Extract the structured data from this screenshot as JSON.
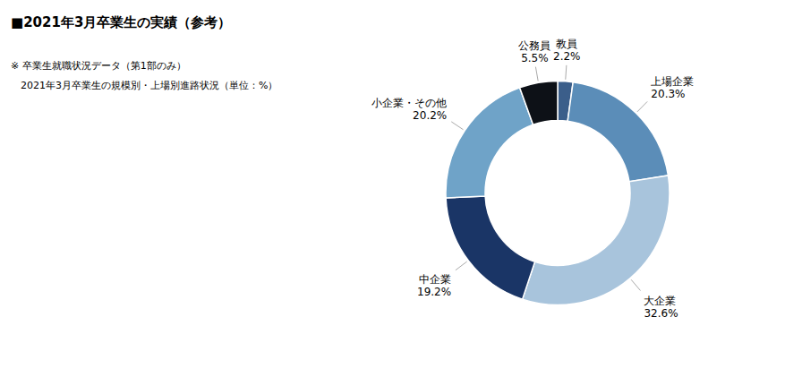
{
  "chart_data": {
    "type": "pie",
    "title": "■2021年3月卒業生の実績（参考）",
    "subtitle": [
      "※ 卒業生就職状況データ（第1部のみ）",
      "　2021年3月卒業生の規模別・上場別進路状況（単位：%）"
    ],
    "categories": [
      "教員",
      "上場企業",
      "大企業",
      "中企業",
      "小企業・その他",
      "公務員"
    ],
    "values": [
      2.2,
      20.3,
      32.6,
      19.2,
      20.2,
      5.5
    ],
    "value_labels": [
      "2.2%",
      "20.3%",
      "32.6%",
      "19.2%",
      "20.2%",
      "5.5%"
    ],
    "colors": [
      "#3b5e8a",
      "#5b8db8",
      "#a8c4dc",
      "#1a3566",
      "#6fa3c8",
      "#0d1117"
    ],
    "data_labels": true
  }
}
